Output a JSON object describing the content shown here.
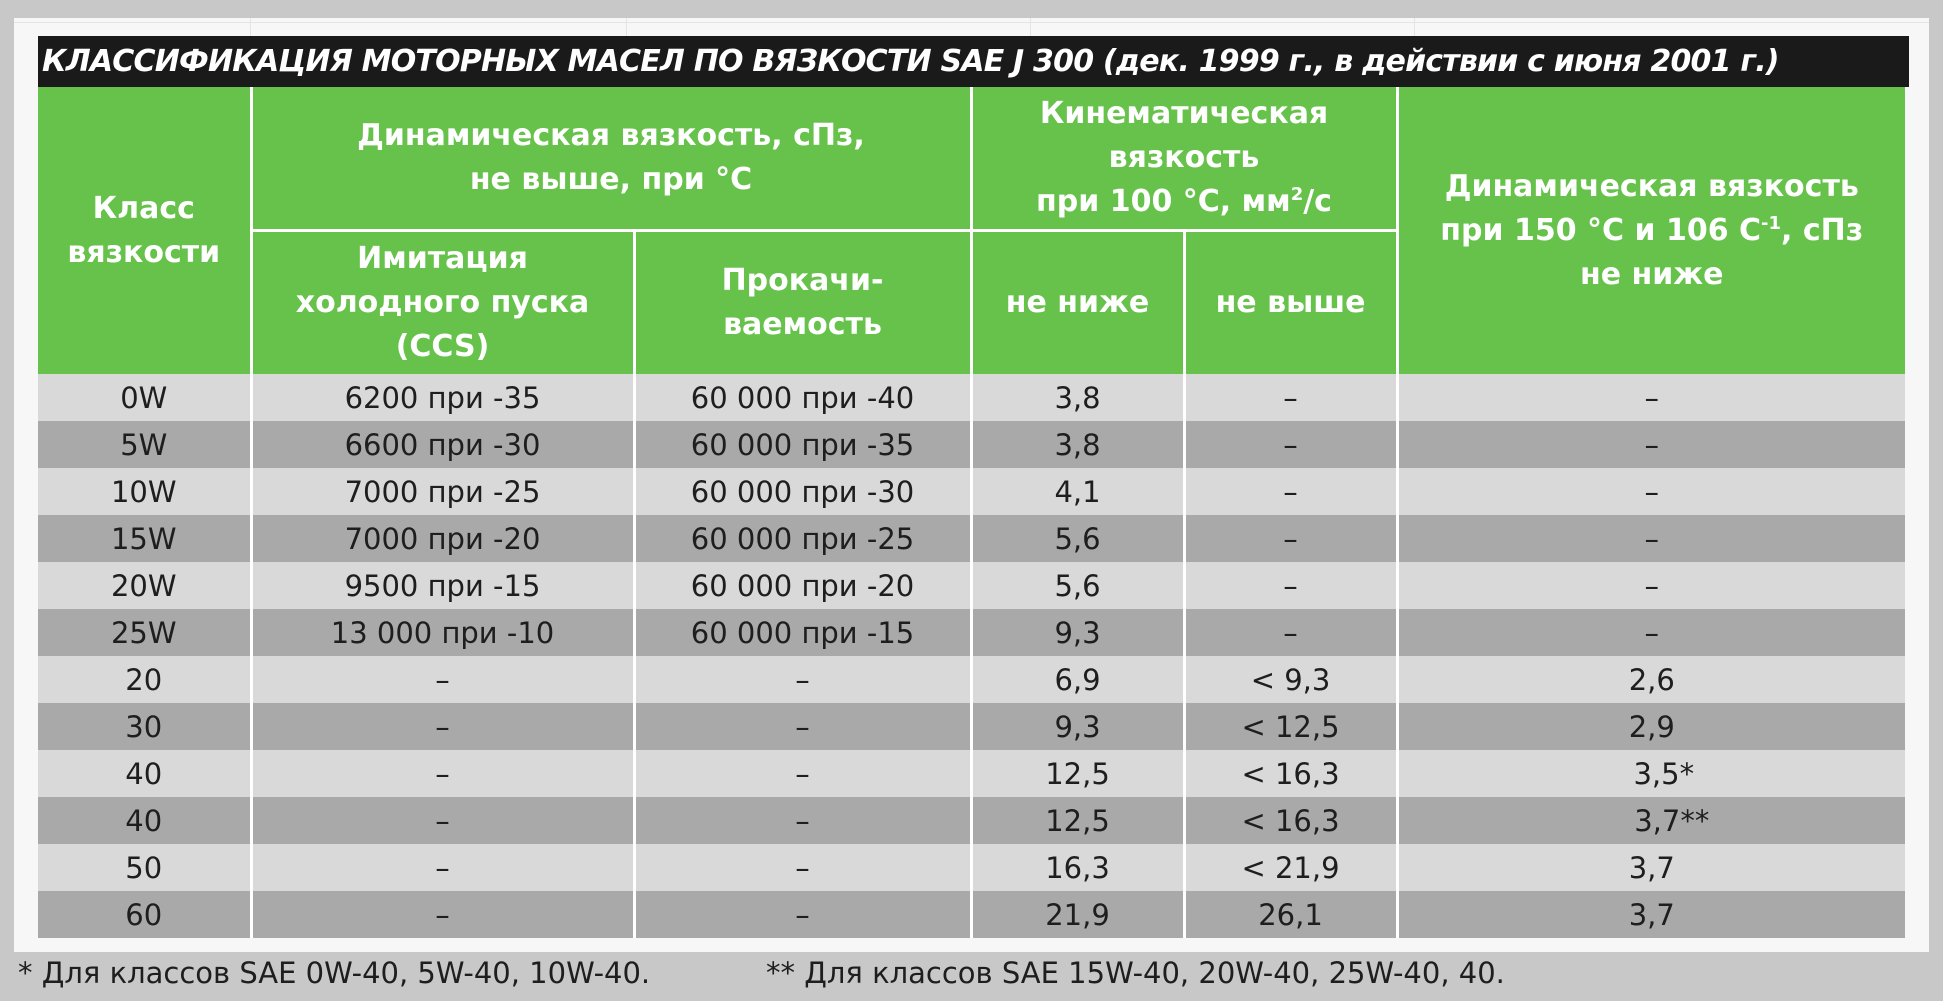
{
  "title": "КЛАССИФИКАЦИЯ МОТОРНЫХ МАСЕЛ ПО ВЯЗКОСТИ SAE J 300  (дек. 1999 г., в действии с июня 2001 г.)",
  "colors": {
    "header_green": "#66c24a",
    "title_black": "#1a1a1a",
    "row_light": "#d9d9d9",
    "row_dark": "#a9a9a9"
  },
  "header": {
    "class_col": [
      "Класс",
      "вязкости"
    ],
    "dyn_group": [
      "Динамическая вязкость, сПз,",
      "не выше, при °С"
    ],
    "ccs": [
      "Имитация",
      "холодного пуска",
      "(CCS)"
    ],
    "pump": [
      "Прокачи-",
      "ваемость"
    ],
    "kin_group": [
      "Кинематическая",
      "вязкость"
    ],
    "kin_group_units_a": "при 100 °С, мм",
    "kin_group_units_sup": "2",
    "kin_group_units_b": "/с",
    "kin_min": "не ниже",
    "kin_max": "не выше",
    "hths_line1": "Динамическая вязкость",
    "hths_line2a": "при 150 °С и 106 С",
    "hths_line2_sup": "-1",
    "hths_line2b": ", сПз",
    "hths_line3": "не ниже"
  },
  "rows": [
    {
      "cls": "0W",
      "ccs": "6200 при -35",
      "pump": "60 000 при -40",
      "kmin": "3,8",
      "kmax": "–",
      "hths": "–"
    },
    {
      "cls": "5W",
      "ccs": "6600 при -30",
      "pump": "60 000 при -35",
      "kmin": "3,8",
      "kmax": "–",
      "hths": "–"
    },
    {
      "cls": "10W",
      "ccs": "7000 при -25",
      "pump": "60 000 при -30",
      "kmin": "4,1",
      "kmax": "–",
      "hths": "–"
    },
    {
      "cls": "15W",
      "ccs": "7000 при -20",
      "pump": "60 000 при -25",
      "kmin": "5,6",
      "kmax": "–",
      "hths": "–"
    },
    {
      "cls": "20W",
      "ccs": "9500 при -15",
      "pump": "60 000 при -20",
      "kmin": "5,6",
      "kmax": "–",
      "hths": "–"
    },
    {
      "cls": "25W",
      "ccs": "13 000 при -10",
      "pump": "60 000 при -15",
      "kmin": "9,3",
      "kmax": "–",
      "hths": "–"
    },
    {
      "cls": "20",
      "ccs": "–",
      "pump": "–",
      "kmin": "6,9",
      "kmax": "< 9,3",
      "hths": "2,6"
    },
    {
      "cls": "30",
      "ccs": "–",
      "pump": "–",
      "kmin": "9,3",
      "kmax": "< 12,5",
      "hths": "2,9"
    },
    {
      "cls": "40",
      "ccs": "–",
      "pump": "–",
      "kmin": "12,5",
      "kmax": "< 16,3",
      "hths": "3,5*"
    },
    {
      "cls": "40",
      "ccs": "–",
      "pump": "–",
      "kmin": "12,5",
      "kmax": "< 16,3",
      "hths": "3,7**"
    },
    {
      "cls": "50",
      "ccs": "–",
      "pump": "–",
      "kmin": "16,3",
      "kmax": "< 21,9",
      "hths": "3,7"
    },
    {
      "cls": "60",
      "ccs": "–",
      "pump": "–",
      "kmin": "21,9",
      "kmax": "26,1",
      "hths": "3,7"
    }
  ],
  "footnotes": {
    "note1": "* Для классов SAE 0W-40, 5W-40, 10W-40.",
    "note2": "** Для классов SAE 15W-40, 20W-40, 25W-40, 40."
  }
}
